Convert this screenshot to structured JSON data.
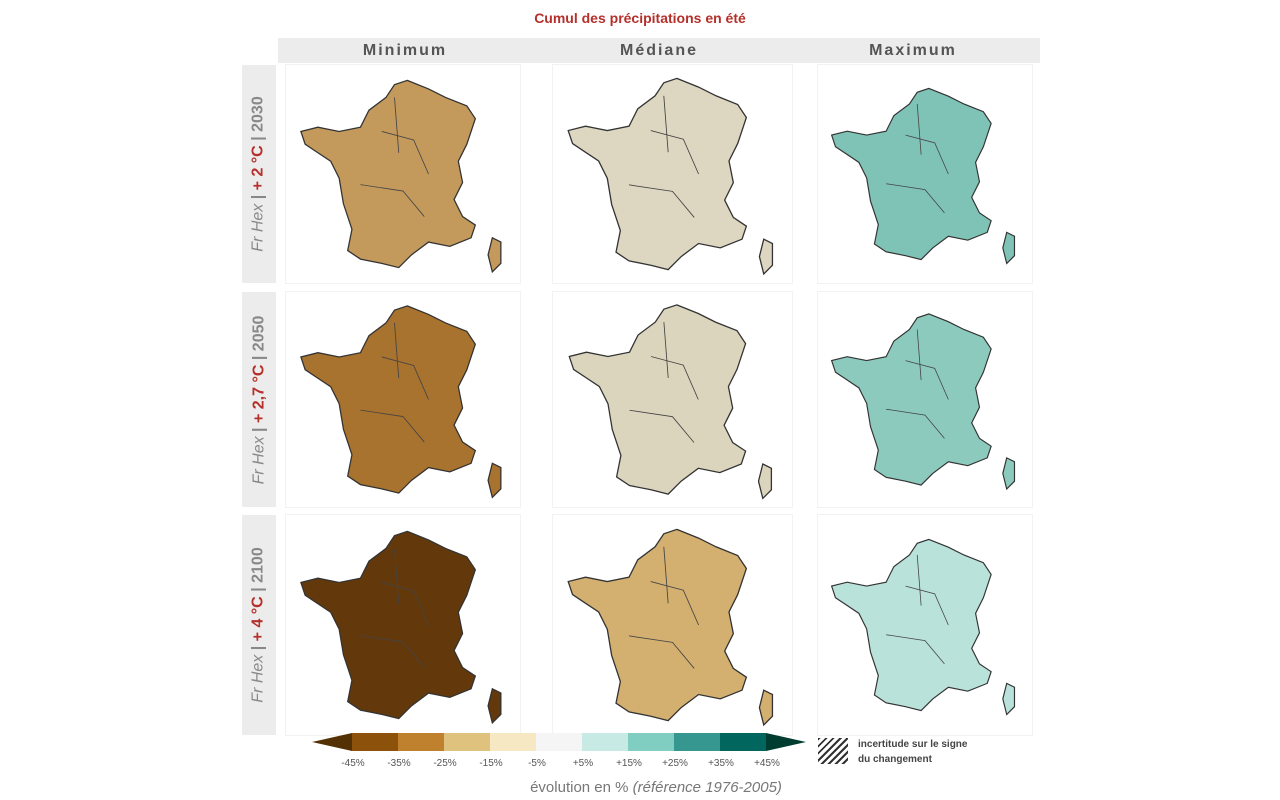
{
  "title": "Cumul des précipitations en été",
  "columns": [
    "Minimum",
    "Médiane",
    "Maximum"
  ],
  "rows": [
    {
      "model": "Fr Hex",
      "warming": "+ 2 °C",
      "year": "2030",
      "fills": [
        "#c49a5c",
        "#ddd6c0",
        "#7fc2b6"
      ]
    },
    {
      "model": "Fr Hex",
      "warming": "+ 2,7 °C",
      "year": "2050",
      "fills": [
        "#a8722f",
        "#dcd5bd",
        "#8ccabe"
      ]
    },
    {
      "model": "Fr Hex",
      "warming": "+ 4 °C",
      "year": "2100",
      "fills": [
        "#63390c",
        "#d3b070",
        "#b9e2da"
      ]
    }
  ],
  "legend": {
    "colors": [
      "#543005",
      "#8c510a",
      "#bf812d",
      "#dfc27d",
      "#f6e8c3",
      "#f5f5f5",
      "#c7eae5",
      "#80cdc1",
      "#35978f",
      "#01665e",
      "#003c30"
    ],
    "ticks": [
      "-45%",
      "-35%",
      "-25%",
      "-15%",
      "-5%",
      "+5%",
      "+15%",
      "+25%",
      "+35%",
      "+45%"
    ],
    "axis_label": "évolution en %",
    "axis_ref": "(référence 1976-2005)",
    "hatch_label_1": "incertitude sur le signe",
    "hatch_label_2": "du changement"
  }
}
